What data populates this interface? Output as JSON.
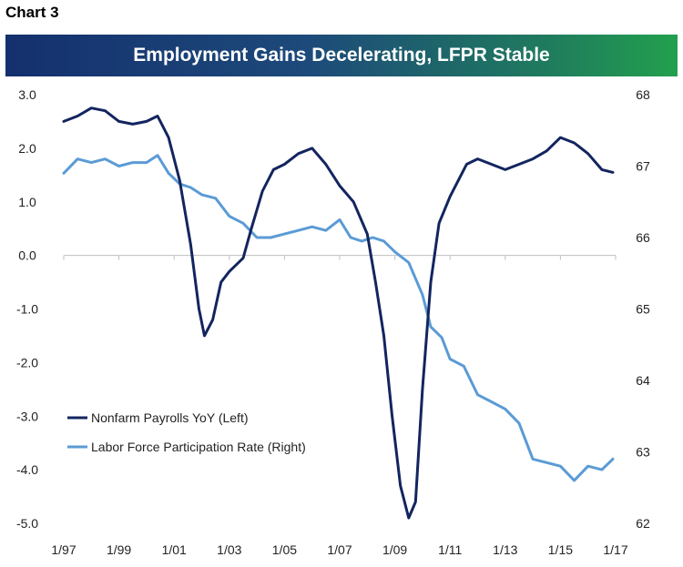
{
  "heading": "Chart 3",
  "chart_data": {
    "type": "line",
    "title": "Employment Gains Decelerating, LFPR Stable",
    "x_tick_labels": [
      "1/97",
      "1/99",
      "1/01",
      "1/03",
      "1/05",
      "1/07",
      "1/09",
      "1/11",
      "1/13",
      "1/15",
      "1/17"
    ],
    "x_range": [
      1997,
      2017
    ],
    "y_left": {
      "range": [
        -5,
        3
      ],
      "ticks": [
        "3.0",
        "2.0",
        "1.0",
        "0.0",
        "-1.0",
        "-2.0",
        "-3.0",
        "-4.0",
        "-5.0"
      ]
    },
    "y_right": {
      "range": [
        62,
        68
      ],
      "ticks": [
        "68",
        "67",
        "66",
        "65",
        "64",
        "63",
        "62"
      ]
    },
    "series": [
      {
        "name": "Nonfarm Payrolls YoY (Left)",
        "axis": "left",
        "color": "#13255f",
        "points": [
          [
            1997.0,
            2.5
          ],
          [
            1997.5,
            2.6
          ],
          [
            1998.0,
            2.75
          ],
          [
            1998.5,
            2.7
          ],
          [
            1999.0,
            2.5
          ],
          [
            1999.5,
            2.45
          ],
          [
            2000.0,
            2.5
          ],
          [
            2000.4,
            2.6
          ],
          [
            2000.8,
            2.2
          ],
          [
            2001.2,
            1.4
          ],
          [
            2001.6,
            0.2
          ],
          [
            2001.9,
            -1.0
          ],
          [
            2002.1,
            -1.5
          ],
          [
            2002.4,
            -1.2
          ],
          [
            2002.7,
            -0.5
          ],
          [
            2003.0,
            -0.3
          ],
          [
            2003.5,
            -0.05
          ],
          [
            2003.8,
            0.5
          ],
          [
            2004.2,
            1.2
          ],
          [
            2004.6,
            1.6
          ],
          [
            2005.0,
            1.7
          ],
          [
            2005.5,
            1.9
          ],
          [
            2006.0,
            2.0
          ],
          [
            2006.5,
            1.7
          ],
          [
            2007.0,
            1.3
          ],
          [
            2007.5,
            1.0
          ],
          [
            2008.0,
            0.4
          ],
          [
            2008.3,
            -0.5
          ],
          [
            2008.6,
            -1.5
          ],
          [
            2008.9,
            -3.0
          ],
          [
            2009.2,
            -4.3
          ],
          [
            2009.5,
            -4.9
          ],
          [
            2009.75,
            -4.6
          ],
          [
            2010.0,
            -2.5
          ],
          [
            2010.3,
            -0.5
          ],
          [
            2010.6,
            0.6
          ],
          [
            2011.0,
            1.1
          ],
          [
            2011.3,
            1.4
          ],
          [
            2011.6,
            1.7
          ],
          [
            2012.0,
            1.8
          ],
          [
            2012.5,
            1.7
          ],
          [
            2013.0,
            1.6
          ],
          [
            2013.5,
            1.7
          ],
          [
            2014.0,
            1.8
          ],
          [
            2014.5,
            1.95
          ],
          [
            2015.0,
            2.2
          ],
          [
            2015.5,
            2.1
          ],
          [
            2016.0,
            1.9
          ],
          [
            2016.5,
            1.6
          ],
          [
            2016.9,
            1.55
          ]
        ]
      },
      {
        "name": "Labor Force Participation Rate (Right)",
        "axis": "right",
        "color": "#5b9bd5",
        "points": [
          [
            1997.0,
            66.9
          ],
          [
            1997.5,
            67.1
          ],
          [
            1998.0,
            67.05
          ],
          [
            1998.5,
            67.1
          ],
          [
            1999.0,
            67.0
          ],
          [
            1999.5,
            67.05
          ],
          [
            2000.0,
            67.05
          ],
          [
            2000.4,
            67.15
          ],
          [
            2000.8,
            66.9
          ],
          [
            2001.2,
            66.75
          ],
          [
            2001.6,
            66.7
          ],
          [
            2002.0,
            66.6
          ],
          [
            2002.5,
            66.55
          ],
          [
            2003.0,
            66.3
          ],
          [
            2003.5,
            66.2
          ],
          [
            2004.0,
            66.0
          ],
          [
            2004.5,
            66.0
          ],
          [
            2005.0,
            66.05
          ],
          [
            2005.5,
            66.1
          ],
          [
            2006.0,
            66.15
          ],
          [
            2006.5,
            66.1
          ],
          [
            2007.0,
            66.25
          ],
          [
            2007.4,
            66.0
          ],
          [
            2007.8,
            65.95
          ],
          [
            2008.2,
            66.0
          ],
          [
            2008.6,
            65.95
          ],
          [
            2009.0,
            65.8
          ],
          [
            2009.5,
            65.65
          ],
          [
            2010.0,
            65.2
          ],
          [
            2010.3,
            64.75
          ],
          [
            2010.7,
            64.6
          ],
          [
            2011.0,
            64.3
          ],
          [
            2011.5,
            64.2
          ],
          [
            2012.0,
            63.8
          ],
          [
            2012.5,
            63.7
          ],
          [
            2013.0,
            63.6
          ],
          [
            2013.5,
            63.4
          ],
          [
            2014.0,
            62.9
          ],
          [
            2014.5,
            62.85
          ],
          [
            2015.0,
            62.8
          ],
          [
            2015.5,
            62.6
          ],
          [
            2016.0,
            62.8
          ],
          [
            2016.5,
            62.75
          ],
          [
            2016.9,
            62.9
          ]
        ]
      }
    ]
  }
}
